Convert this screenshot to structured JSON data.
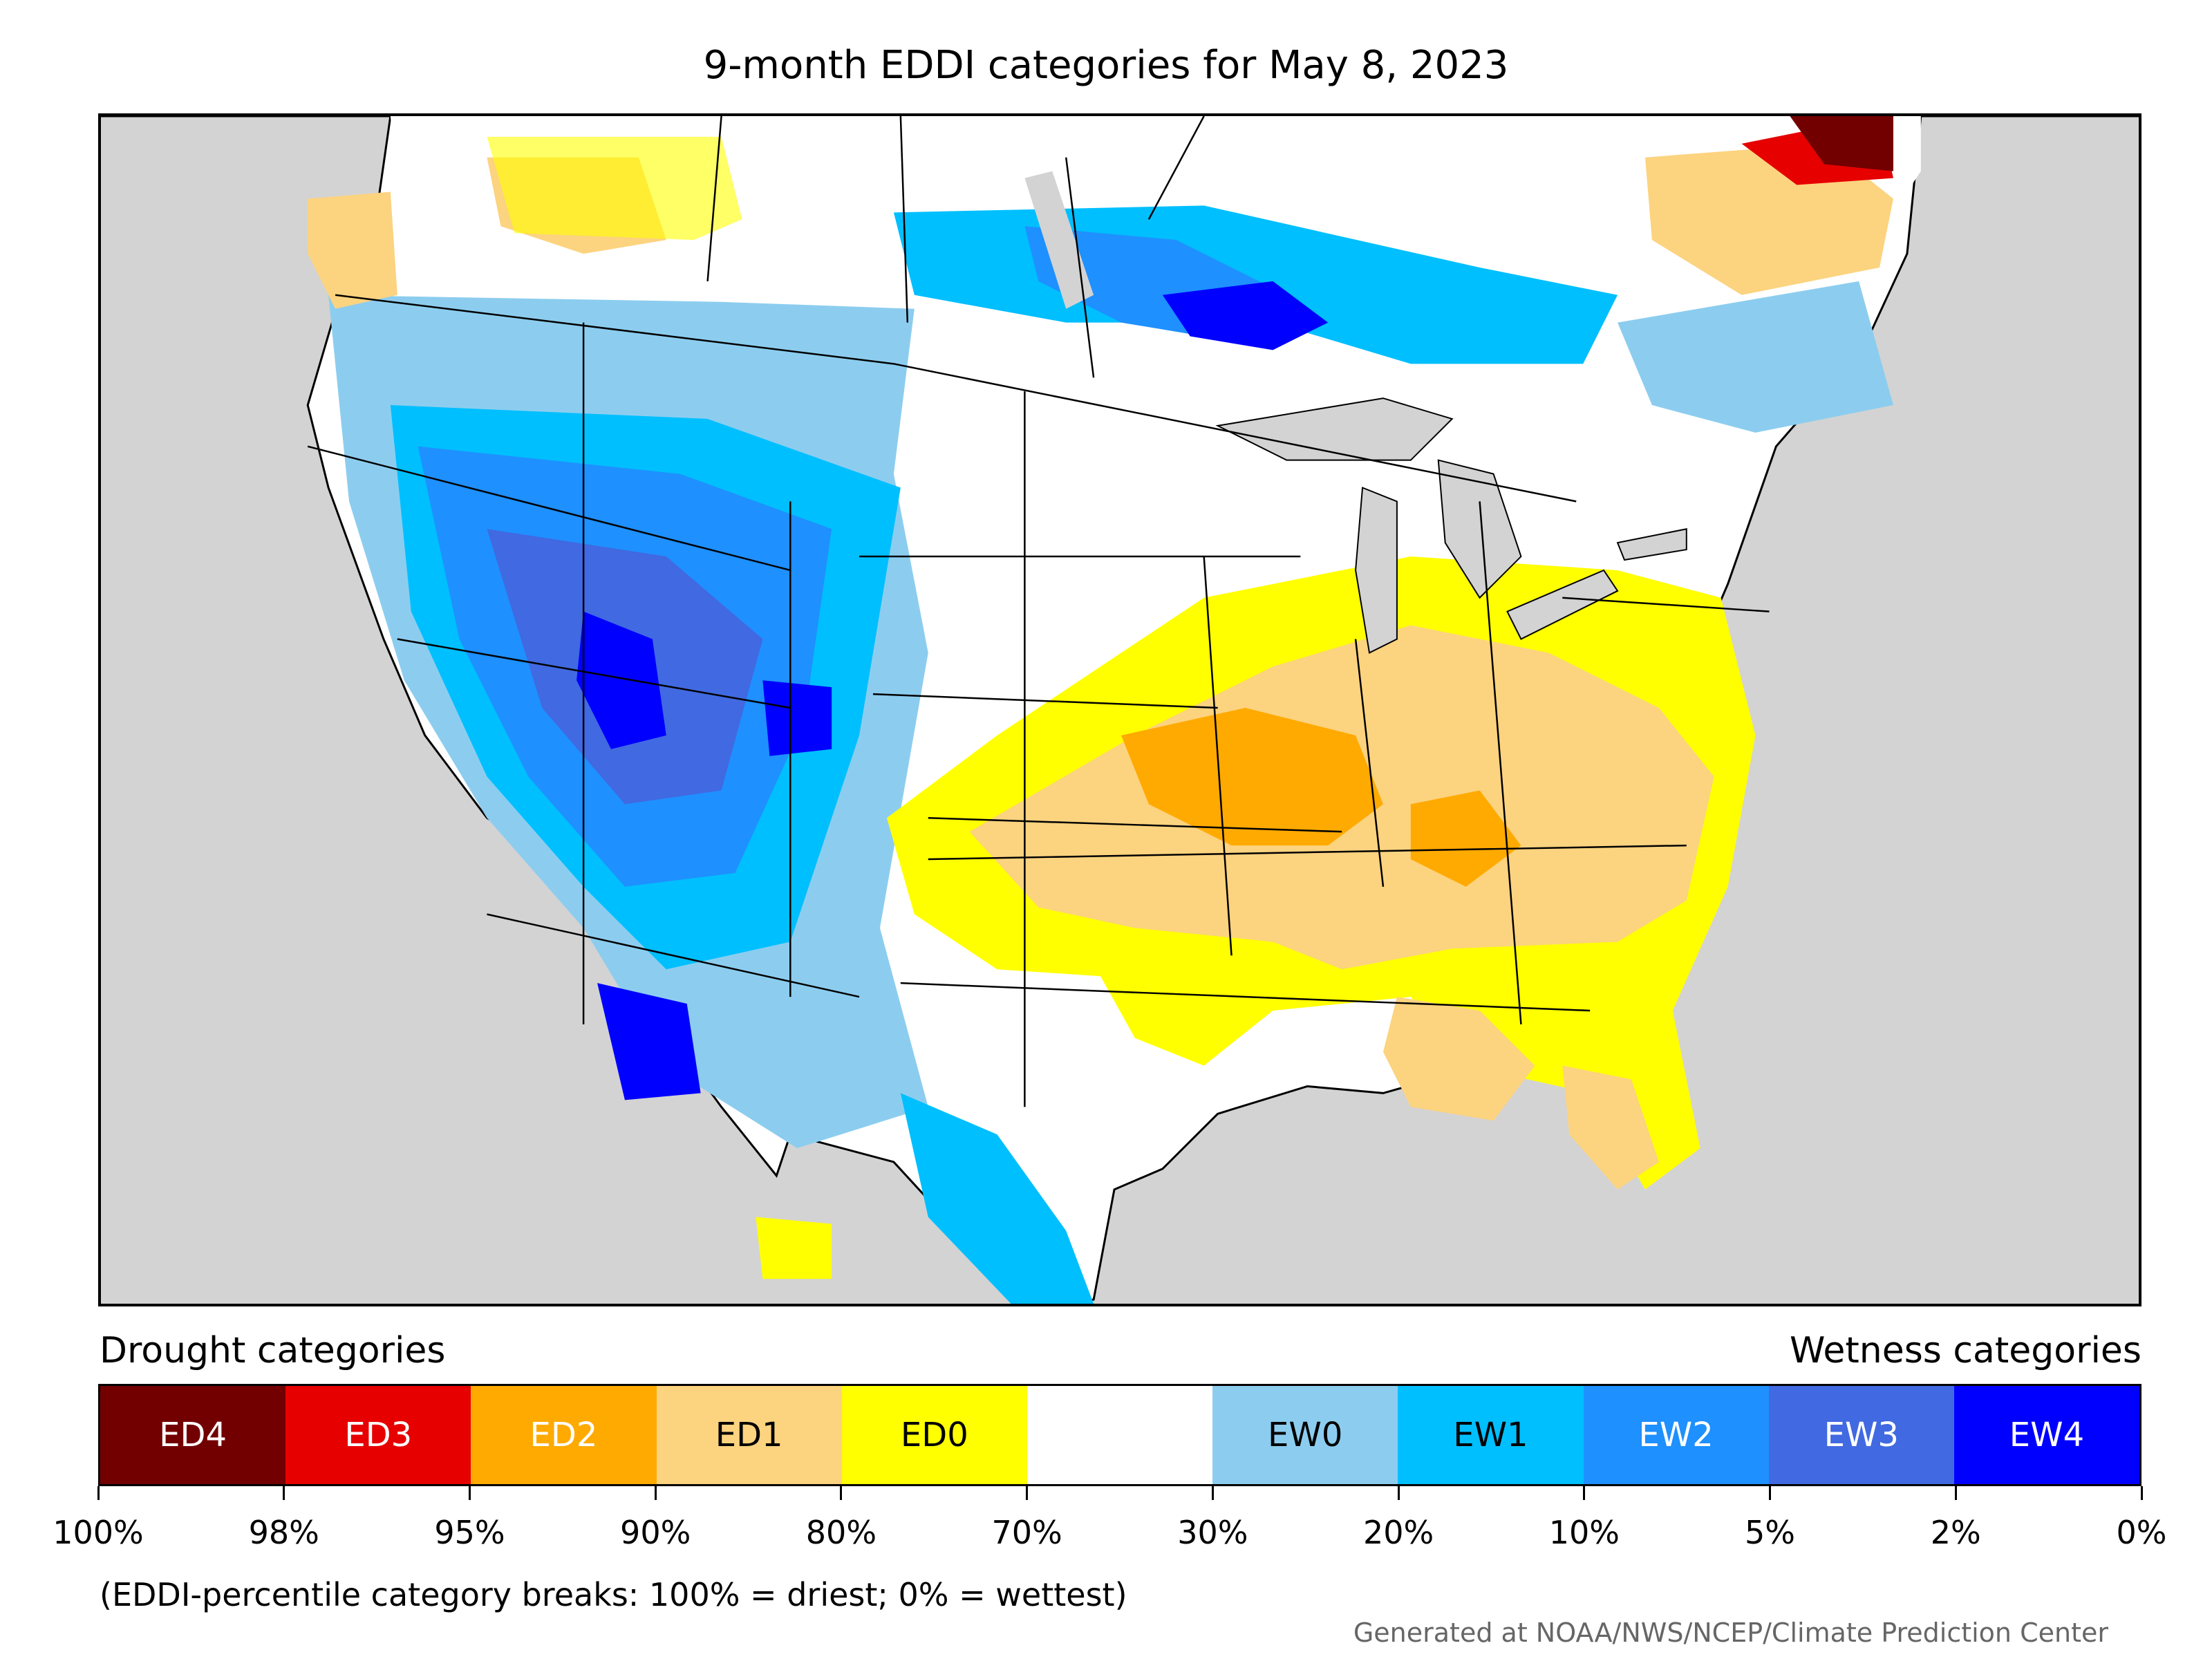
{
  "title": "9-month EDDI categories for May 8, 2023",
  "legend": {
    "drought_heading": "Drought categories",
    "wetness_heading": "Wetness categories",
    "categories": [
      {
        "label": "ED4",
        "color": "#730000",
        "text_color": "#ffffff"
      },
      {
        "label": "ED3",
        "color": "#e60000",
        "text_color": "#ffffff"
      },
      {
        "label": "ED2",
        "color": "#ffaa00",
        "text_color": "#ffffff"
      },
      {
        "label": "ED1",
        "color": "#fcd37f",
        "text_color": "#000000"
      },
      {
        "label": "ED0",
        "color": "#ffff00",
        "text_color": "#000000"
      },
      {
        "label": "",
        "color": "#ffffff",
        "text_color": "#000000"
      },
      {
        "label": "EW0",
        "color": "#8ccdef",
        "text_color": "#000000"
      },
      {
        "label": "EW1",
        "color": "#00bfff",
        "text_color": "#000000"
      },
      {
        "label": "EW2",
        "color": "#1e90ff",
        "text_color": "#ffffff"
      },
      {
        "label": "EW3",
        "color": "#4169e1",
        "text_color": "#ffffff"
      },
      {
        "label": "EW4",
        "color": "#0000ff",
        "text_color": "#ffffff"
      }
    ],
    "breaks": [
      "100%",
      "98%",
      "95%",
      "90%",
      "80%",
      "70%",
      "30%",
      "20%",
      "10%",
      "5%",
      "2%",
      "0%"
    ]
  },
  "note": "(EDDI-percentile category breaks: 100% = driest; 0% = wettest)",
  "credit": "Generated at NOAA/NWS/NCEP/Climate Prediction Center"
}
